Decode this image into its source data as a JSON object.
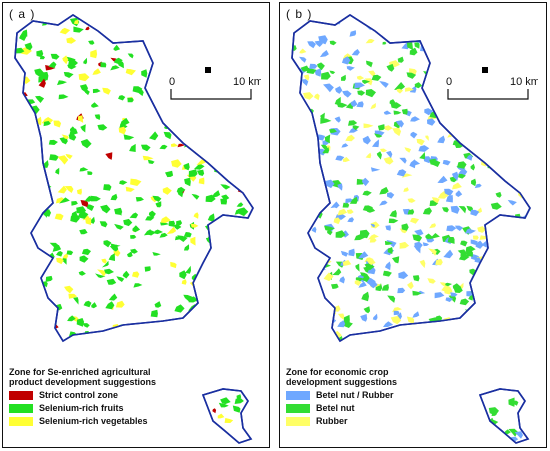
{
  "panels": [
    {
      "label": "( a )",
      "scale": {
        "start": "0",
        "end": "10 km"
      },
      "legend": {
        "title_line1": "Zone for Se-enriched agricultural",
        "title_line2": "product development suggestions",
        "items": [
          {
            "label": "Strict control zone",
            "color": "#c00000"
          },
          {
            "label": "Selenium-rich fruits",
            "color": "#22e022"
          },
          {
            "label": "Selenium-rich vegetables",
            "color": "#ffff33"
          }
        ]
      }
    },
    {
      "label": "( b )",
      "scale": {
        "start": "0",
        "end": "10 km"
      },
      "legend": {
        "title_line1": "Zone for economic crop",
        "title_line2": "development suggestions",
        "items": [
          {
            "label": "Betel nut / Rubber",
            "color": "#6fa8ff"
          },
          {
            "label": "Betel nut",
            "color": "#33dd33"
          },
          {
            "label": "Rubber",
            "color": "#ffff66"
          }
        ]
      }
    }
  ],
  "colors": {
    "boundary": "#1a2fa0",
    "north_marker": "#000000"
  }
}
